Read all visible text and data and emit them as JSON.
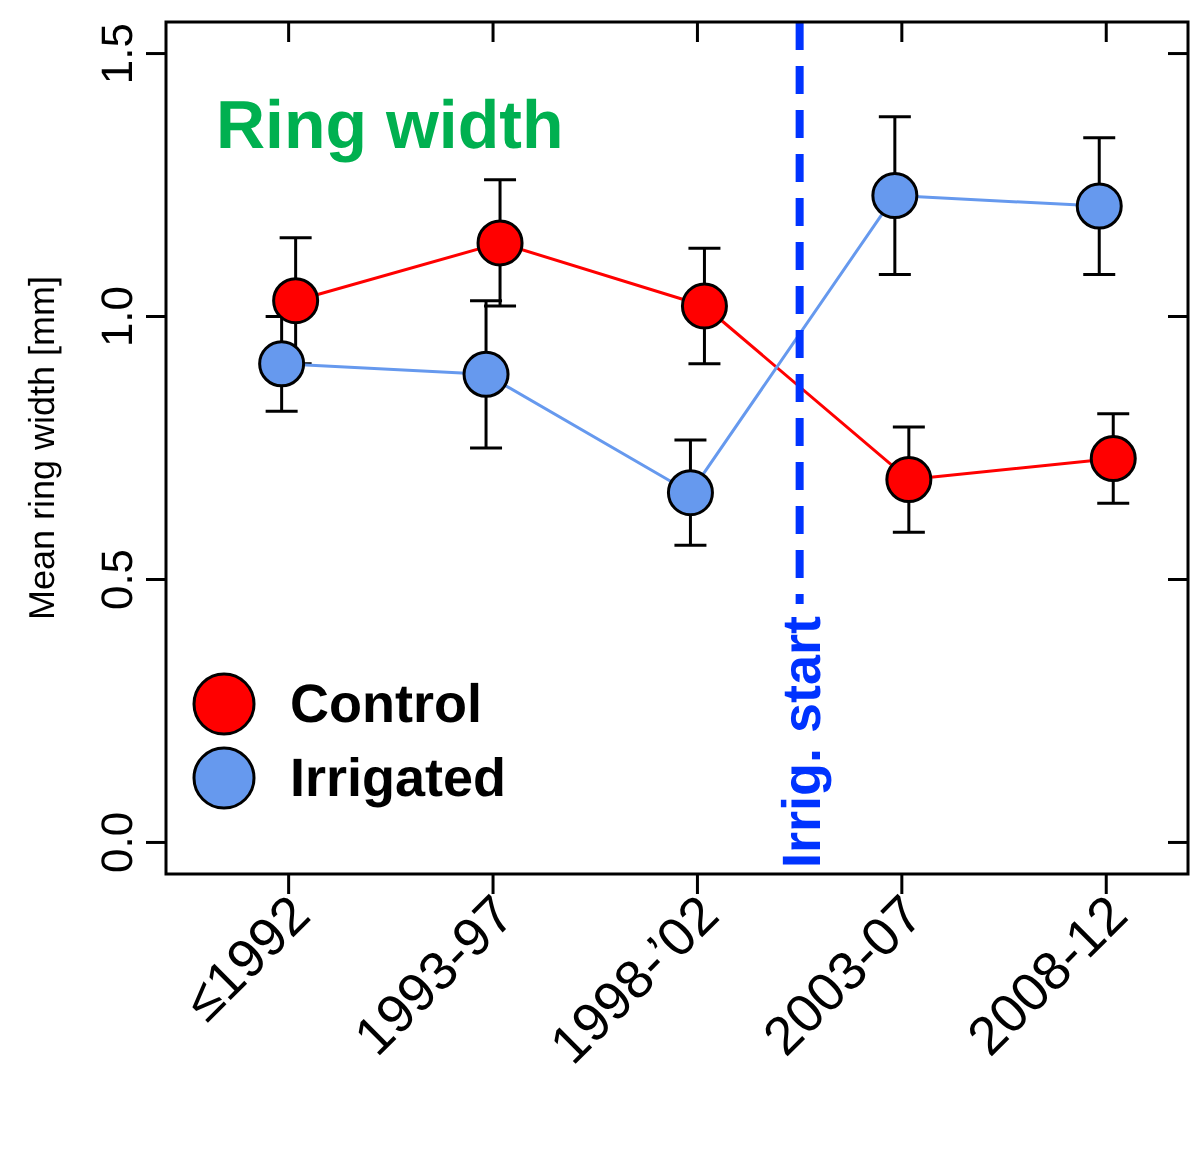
{
  "chart_data": {
    "type": "line",
    "title": "Ring width",
    "ylabel": "Mean ring width [mm]",
    "categories": [
      "≤1992",
      "1993-97",
      "1998-’02",
      "2003-07",
      "2008-12"
    ],
    "ylim": [
      -0.06,
      1.56
    ],
    "yticks": [
      {
        "value": 0,
        "label": "0.0"
      },
      0.5,
      {
        "value": 1,
        "label": "1.0"
      },
      1.5
    ],
    "series": [
      {
        "name": "Control",
        "color": "#ff0000",
        "values": [
          1.03,
          1.14,
          1.02,
          0.69,
          0.73
        ],
        "errors": [
          0.12,
          0.12,
          0.11,
          0.1,
          0.085
        ]
      },
      {
        "name": "Irrigated",
        "color": "#6699ee",
        "values": [
          0.91,
          0.89,
          0.665,
          1.23,
          1.21
        ],
        "errors": [
          0.09,
          0.14,
          0.1,
          0.15,
          0.13
        ]
      }
    ],
    "annotations": [
      "Irrig. start"
    ],
    "marker": "circle",
    "legend": "bottom left",
    "grid": false
  }
}
